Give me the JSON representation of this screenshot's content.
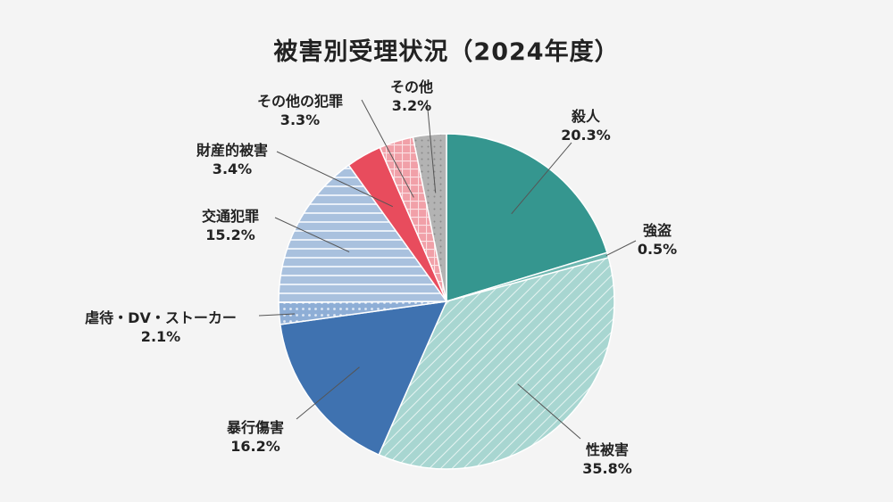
{
  "chart_data": {
    "type": "pie",
    "title": "被害別受理状況（2024年度）",
    "start": "top",
    "direction": "clockwise",
    "slices": [
      {
        "label": "殺人",
        "value": 20.3,
        "display": "20.3%",
        "color": "#35968f",
        "pattern": "solid"
      },
      {
        "label": "強盗",
        "value": 0.5,
        "display": "0.5%",
        "color": "#6fb8b1",
        "pattern": "solid"
      },
      {
        "label": "性被害",
        "value": 35.8,
        "display": "35.8%",
        "color": "#a8d6d1",
        "pattern": "diagonal-stripes"
      },
      {
        "label": "暴行傷害",
        "value": 16.2,
        "display": "16.2%",
        "color": "#3f72b0",
        "pattern": "solid"
      },
      {
        "label": "虐待・DV・ストーカー",
        "value": 2.1,
        "display": "2.1%",
        "color": "#8eaed6",
        "pattern": "dots"
      },
      {
        "label": "交通犯罪",
        "value": 15.2,
        "display": "15.2%",
        "color": "#a9c1de",
        "pattern": "horizontal-stripes"
      },
      {
        "label": "財産的被害",
        "value": 3.4,
        "display": "3.4%",
        "color": "#e84c5d",
        "pattern": "solid"
      },
      {
        "label": "その他の犯罪",
        "value": 3.3,
        "display": "3.3%",
        "color": "#f1a0a8",
        "pattern": "grid"
      },
      {
        "label": "その他",
        "value": 3.2,
        "display": "3.2%",
        "color": "#b3b3b3",
        "pattern": "dots"
      }
    ]
  }
}
